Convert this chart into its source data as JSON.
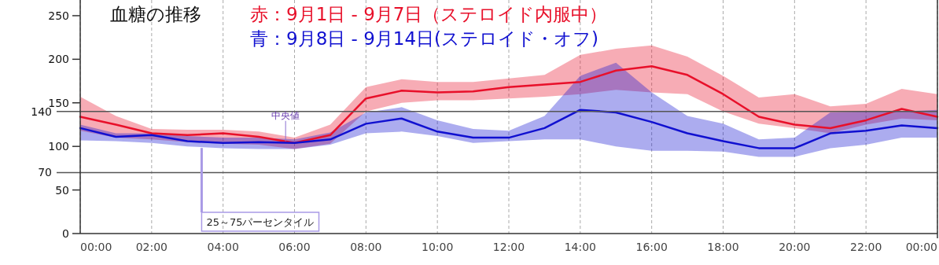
{
  "chart_data": {
    "type": "line",
    "title": "血糖の推移",
    "x": [
      0,
      1,
      2,
      3,
      4,
      5,
      6,
      7,
      8,
      9,
      10,
      11,
      12,
      13,
      14,
      15,
      16,
      17,
      18,
      19,
      20,
      21,
      22,
      23,
      24
    ],
    "series": [
      {
        "name": "赤：9月1日 - 9月7日（ステロイド内服中）",
        "color": "#e8102a",
        "values": [
          134,
          125,
          115,
          113,
          115,
          111,
          104,
          113,
          155,
          164,
          162,
          163,
          168,
          171,
          174,
          187,
          192,
          182,
          160,
          134,
          125,
          121,
          130,
          143,
          134
        ],
        "lower": [
          118,
          110,
          108,
          105,
          103,
          102,
          97,
          103,
          140,
          150,
          153,
          153,
          155,
          157,
          160,
          165,
          162,
          160,
          140,
          126,
          121,
          115,
          125,
          132,
          130
        ],
        "upper": [
          157,
          135,
          120,
          119,
          119,
          117,
          110,
          125,
          168,
          177,
          174,
          174,
          178,
          182,
          205,
          212,
          216,
          203,
          181,
          156,
          160,
          146,
          149,
          166,
          160
        ]
      },
      {
        "name": "青：9月8日 - 9月14日(ステロイド・オフ)",
        "color": "#1010d0",
        "values": [
          121,
          111,
          113,
          106,
          104,
          105,
          104,
          108,
          126,
          132,
          117,
          110,
          110,
          121,
          142,
          139,
          128,
          115,
          106,
          98,
          98,
          115,
          118,
          124,
          121
        ],
        "lower": [
          107,
          106,
          104,
          100,
          98,
          97,
          97,
          102,
          115,
          117,
          112,
          104,
          106,
          108,
          108,
          100,
          95,
          95,
          94,
          88,
          88,
          98,
          102,
          110,
          110
        ],
        "upper": [
          125,
          115,
          115,
          112,
          110,
          110,
          108,
          116,
          139,
          145,
          130,
          120,
          118,
          135,
          181,
          196,
          162,
          135,
          126,
          108,
          110,
          139,
          140,
          140,
          142
        ]
      }
    ],
    "xlim": [
      0,
      24
    ],
    "ylim": [
      0,
      268
    ],
    "xticks": [
      {
        "value": 0,
        "label": "00:00"
      },
      {
        "value": 2,
        "label": "02:00"
      },
      {
        "value": 4,
        "label": "04:00"
      },
      {
        "value": 6,
        "label": "06:00"
      },
      {
        "value": 8,
        "label": "08:00"
      },
      {
        "value": 10,
        "label": "10:00"
      },
      {
        "value": 12,
        "label": "12:00"
      },
      {
        "value": 14,
        "label": "14:00"
      },
      {
        "value": 16,
        "label": "16:00"
      },
      {
        "value": 18,
        "label": "18:00"
      },
      {
        "value": 20,
        "label": "20:00"
      },
      {
        "value": 22,
        "label": "22:00"
      },
      {
        "value": 24,
        "label": "00:00"
      }
    ],
    "yticks": [
      0,
      50,
      100,
      150,
      200,
      250
    ],
    "ref_lines": [
      {
        "axis": "y",
        "value": 140,
        "label": "140"
      },
      {
        "axis": "y",
        "value": 70,
        "label": "70"
      }
    ],
    "annotations": [
      {
        "text": "中央値",
        "x": 5.75,
        "y": 104
      },
      {
        "text": "25～75パーセンタイル",
        "x": 3.4,
        "y": 100
      }
    ],
    "grid": "x",
    "marker": "none",
    "line_style": "solid"
  }
}
